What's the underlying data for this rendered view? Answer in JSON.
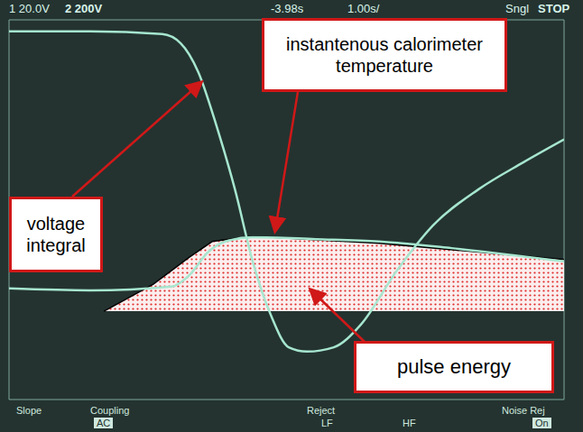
{
  "chart_data": {
    "type": "line",
    "header_texts": [
      "1 20.0V",
      "2 200V",
      "-3.98s",
      "1.00s/",
      "Sngl",
      "STOP"
    ],
    "softkey_texts": [
      "Slope",
      "Coupling",
      "AC",
      "Reject",
      "LF",
      "HF",
      "Noise Rej",
      "On"
    ],
    "xlim": [
      0,
      10
    ],
    "ylim": [
      0,
      8
    ],
    "xticks": [
      0,
      1,
      2,
      3,
      4,
      5,
      6,
      7,
      8,
      9,
      10
    ],
    "yticks": [
      0,
      1,
      2,
      3,
      4,
      5,
      6,
      7,
      8
    ],
    "grid": true,
    "tick_labels": false,
    "series": [
      {
        "name": "voltage integral",
        "color": "#a6e6cf",
        "x": [
          0,
          1.46,
          2.76,
          3.09,
          3.41,
          3.74,
          4.07,
          4.39,
          4.72,
          5.04,
          5.37,
          5.85,
          6.34,
          6.99,
          7.64,
          8.46,
          9.27,
          10
        ],
        "values": [
          7.76,
          7.76,
          7.7,
          7.51,
          6.9,
          5.76,
          4.43,
          2.91,
          1.77,
          1.1,
          1.01,
          1.1,
          1.58,
          2.72,
          3.67,
          4.43,
          5.0,
          5.48
        ]
      },
      {
        "name": "instantenous calorimeter temperature",
        "color": "#a6e6cf",
        "x": [
          0,
          1.46,
          2.93,
          3.25,
          3.58,
          3.9,
          4.39,
          5.53,
          6.67,
          7.97,
          10
        ],
        "values": [
          2.34,
          2.3,
          2.38,
          2.62,
          3.1,
          3.33,
          3.42,
          3.38,
          3.33,
          3.19,
          2.91
        ]
      },
      {
        "name": "pulse energy",
        "type": "area",
        "color": "#e02828",
        "x": [
          1.71,
          2.6,
          3.25,
          3.66,
          4.39,
          6.67,
          10
        ],
        "values": [
          1.86,
          2.43,
          3.0,
          3.33,
          3.44,
          3.29,
          2.95
        ],
        "base": 1.86
      }
    ]
  }
}
